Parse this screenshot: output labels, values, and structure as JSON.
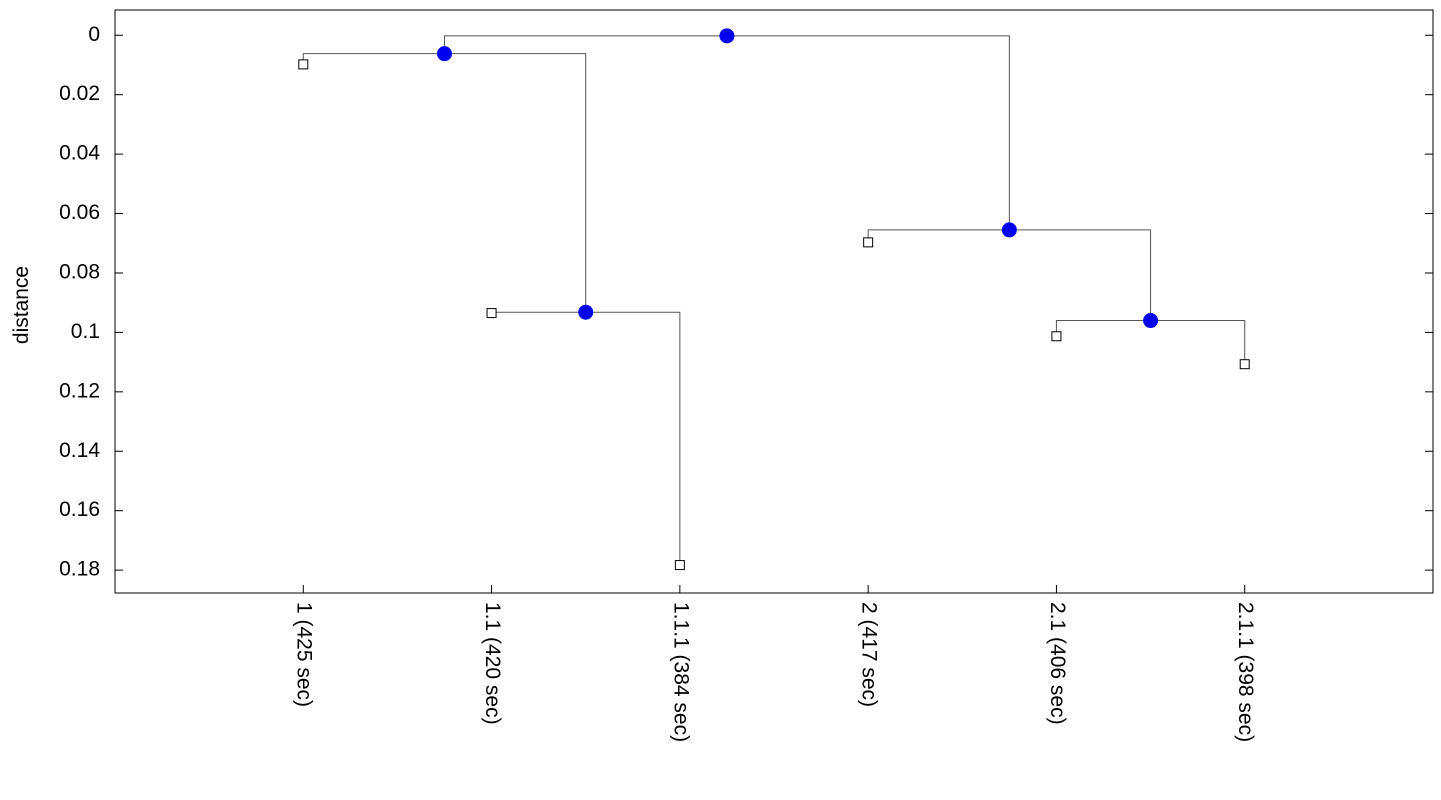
{
  "chart_data": {
    "type": "dendrogram",
    "y_label": "distance",
    "ylim": [
      -0.0085,
      0.1877
    ],
    "y_inverted": true,
    "yticks": [
      0,
      0.02,
      0.04,
      0.06,
      0.08,
      0.1,
      0.12,
      0.14,
      0.16,
      0.18
    ],
    "leaves": [
      {
        "label": "1 (425 sec)",
        "distance": 0.0098
      },
      {
        "label": "1.1 (420 sec)",
        "distance": 0.0935
      },
      {
        "label": "1.1.1 (384 sec)",
        "distance": 0.1783
      },
      {
        "label": "2 (417 sec)",
        "distance": 0.0697
      },
      {
        "label": "2.1 (406 sec)",
        "distance": 0.1013
      },
      {
        "label": "2.1.1 (398 sec)",
        "distance": 0.1107
      }
    ],
    "nodes": [
      {
        "children": [
          1,
          2
        ],
        "distance": 0.0932
      },
      {
        "children": [
          0,
          6
        ],
        "distance": 0.0062
      },
      {
        "children": [
          4,
          5
        ],
        "distance": 0.096
      },
      {
        "children": [
          3,
          8
        ],
        "distance": 0.0655
      },
      {
        "children": [
          7,
          9
        ],
        "distance": 0.0002
      }
    ],
    "node_color": "#0000ee",
    "leaf_color": "#ffffff"
  }
}
